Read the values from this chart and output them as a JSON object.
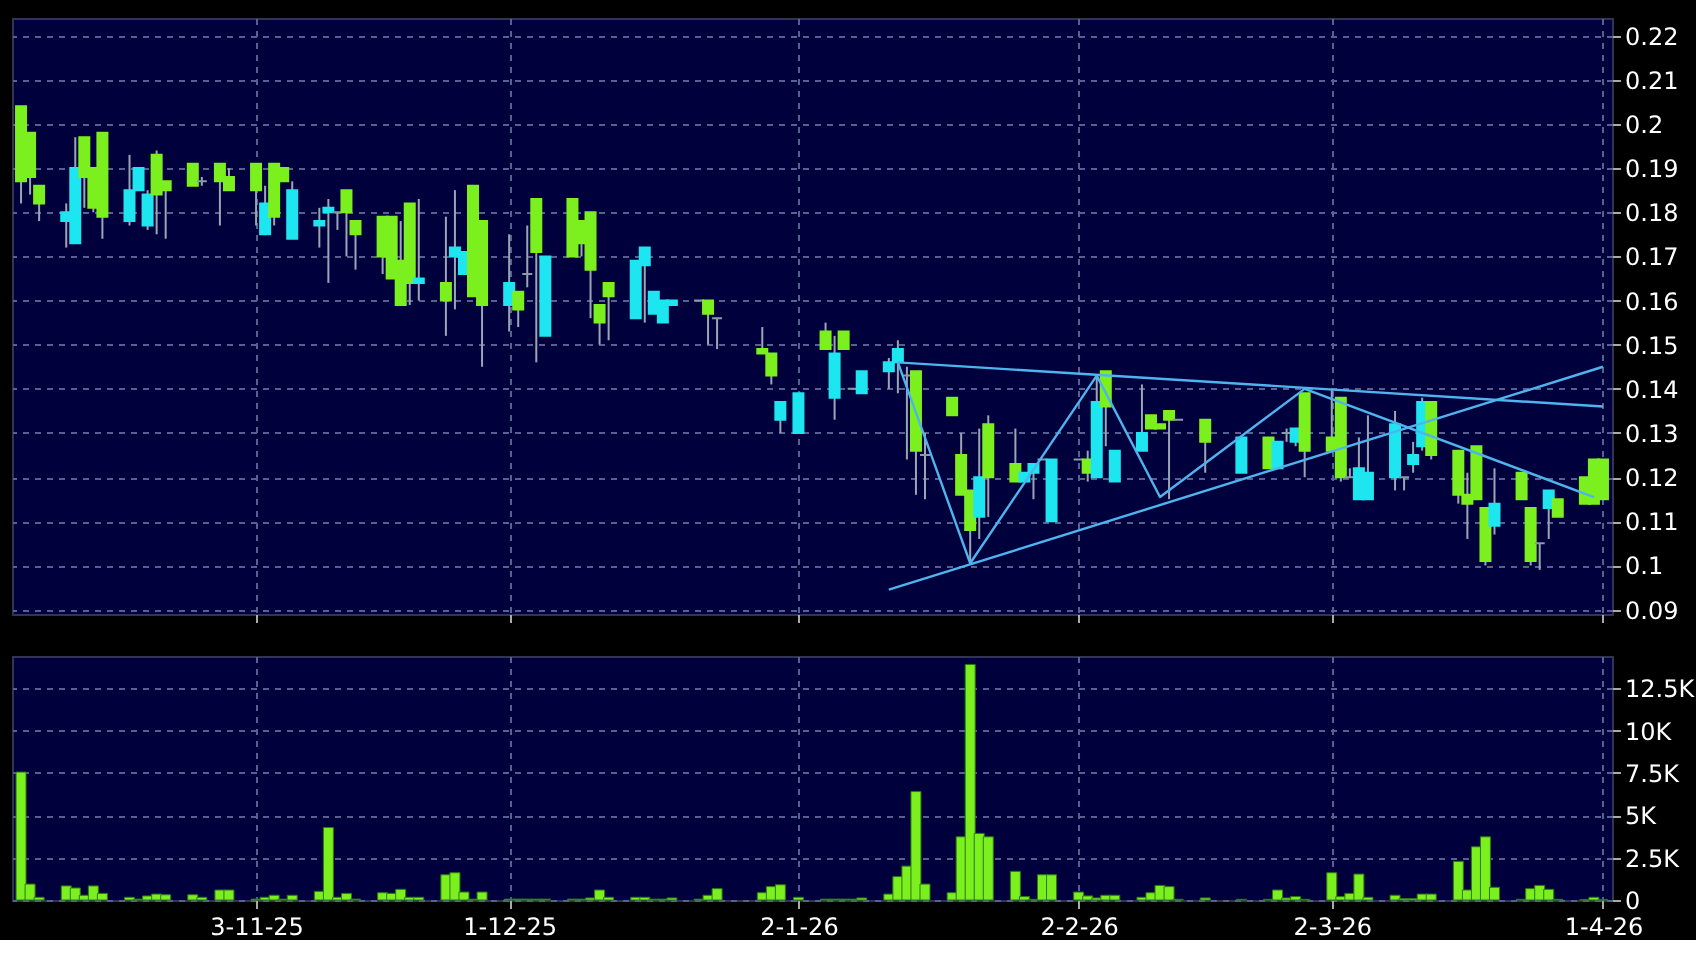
{
  "chart_data": [
    {
      "type": "candlestick",
      "x": [
        "2025-10-08",
        "2025-10-09",
        "2025-10-10",
        "2025-10-13",
        "2025-10-14",
        "2025-10-15",
        "2025-10-16",
        "2025-10-17",
        "2025-10-20",
        "2025-10-21",
        "2025-10-22",
        "2025-10-23",
        "2025-10-24",
        "2025-10-27",
        "2025-10-28",
        "2025-10-30",
        "2025-10-31",
        "2025-11-03",
        "2025-11-04",
        "2025-11-05",
        "2025-11-06",
        "2025-11-07",
        "2025-11-10",
        "2025-11-11",
        "2025-11-12",
        "2025-11-13",
        "2025-11-14",
        "2025-11-17",
        "2025-11-18",
        "2025-11-19",
        "2025-11-20",
        "2025-11-21",
        "2025-11-24",
        "2025-11-25",
        "2025-11-26",
        "2025-11-27",
        "2025-11-28",
        "2025-12-01",
        "2025-12-02",
        "2025-12-03",
        "2025-12-04",
        "2025-12-05",
        "2025-12-08",
        "2025-12-09",
        "2025-12-10",
        "2025-12-11",
        "2025-12-12",
        "2025-12-15",
        "2025-12-16",
        "2025-12-17",
        "2025-12-18",
        "2025-12-19",
        "2025-12-22",
        "2025-12-23",
        "2025-12-24",
        "2025-12-29",
        "2025-12-30",
        "2025-12-31",
        "2026-01-02",
        "2026-01-05",
        "2026-01-06",
        "2026-01-07",
        "2026-01-08",
        "2026-01-09",
        "2026-01-12",
        "2026-01-13",
        "2026-01-14",
        "2026-01-15",
        "2026-01-16",
        "2026-01-19",
        "2026-01-20",
        "2026-01-21",
        "2026-01-22",
        "2026-01-23",
        "2026-01-26",
        "2026-01-27",
        "2026-01-28",
        "2026-01-29",
        "2026-01-30",
        "2026-02-02",
        "2026-02-03",
        "2026-02-04",
        "2026-02-05",
        "2026-02-06",
        "2026-02-09",
        "2026-02-10",
        "2026-02-11",
        "2026-02-12",
        "2026-02-13",
        "2026-02-16",
        "2026-02-20",
        "2026-02-23",
        "2026-02-24",
        "2026-02-25",
        "2026-02-26",
        "2026-02-27",
        "2026-03-02",
        "2026-03-03",
        "2026-03-04",
        "2026-03-05",
        "2026-03-06",
        "2026-03-09",
        "2026-03-10",
        "2026-03-11",
        "2026-03-12",
        "2026-03-13",
        "2026-03-16",
        "2026-03-17",
        "2026-03-18",
        "2026-03-19",
        "2026-03-20",
        "2026-03-23",
        "2026-03-24",
        "2026-03-25",
        "2026-03-26",
        "2026-03-27",
        "2026-03-30",
        "2026-03-31",
        "2026-04-01"
      ],
      "ohlc": [
        [
          0.187,
          0.204,
          0.182,
          0.204
        ],
        [
          0.188,
          0.198,
          0.184,
          0.198
        ],
        [
          0.182,
          0.186,
          0.178,
          0.186
        ],
        [
          0.18,
          0.182,
          0.172,
          0.178
        ],
        [
          0.19,
          0.197,
          0.173,
          0.173
        ],
        [
          0.188,
          0.197,
          0.181,
          0.197
        ],
        [
          0.181,
          0.19,
          0.18,
          0.19
        ],
        [
          0.179,
          0.198,
          0.174,
          0.198
        ],
        [
          0.185,
          0.193,
          0.177,
          0.178
        ],
        [
          0.19,
          0.19,
          0.185,
          0.185
        ],
        [
          0.184,
          0.185,
          0.176,
          0.177
        ],
        [
          0.184,
          0.194,
          0.175,
          0.193
        ],
        [
          0.185,
          0.187,
          0.174,
          0.187
        ],
        [
          0.186,
          0.191,
          0.186,
          0.191
        ],
        [
          0.187,
          0.188,
          0.186,
          0.187
        ],
        [
          0.187,
          0.191,
          0.177,
          0.191
        ],
        [
          0.185,
          0.19,
          0.185,
          0.188
        ],
        [
          0.185,
          0.191,
          0.177,
          0.191
        ],
        [
          0.182,
          0.186,
          0.175,
          0.175
        ],
        [
          0.179,
          0.191,
          0.177,
          0.191
        ],
        [
          0.187,
          0.19,
          0.187,
          0.19
        ],
        [
          0.185,
          0.187,
          0.174,
          0.174
        ],
        [
          0.178,
          0.181,
          0.172,
          0.177
        ],
        [
          0.181,
          0.183,
          0.164,
          0.18
        ],
        [
          0.18,
          0.18,
          0.176,
          0.18
        ],
        [
          0.18,
          0.185,
          0.17,
          0.185
        ],
        [
          0.175,
          0.178,
          0.167,
          0.178
        ],
        [
          0.17,
          0.179,
          0.166,
          0.179
        ],
        [
          0.165,
          0.179,
          0.165,
          0.179
        ],
        [
          0.159,
          0.178,
          0.159,
          0.169
        ],
        [
          0.164,
          0.182,
          0.159,
          0.182
        ],
        [
          0.165,
          0.183,
          0.16,
          0.164
        ],
        [
          0.16,
          0.179,
          0.152,
          0.164
        ],
        [
          0.172,
          0.185,
          0.158,
          0.17
        ],
        [
          0.171,
          0.171,
          0.166,
          0.166
        ],
        [
          0.161,
          0.186,
          0.161,
          0.186
        ],
        [
          0.159,
          0.178,
          0.145,
          0.178
        ],
        [
          0.164,
          0.175,
          0.153,
          0.159
        ],
        [
          0.158,
          0.162,
          0.154,
          0.162
        ],
        [
          0.166,
          0.177,
          0.163,
          0.166
        ],
        [
          0.171,
          0.183,
          0.146,
          0.183
        ],
        [
          0.17,
          0.17,
          0.152,
          0.152
        ],
        [
          0.17,
          0.183,
          0.17,
          0.183
        ],
        [
          0.173,
          0.178,
          0.17,
          0.178
        ],
        [
          0.167,
          0.18,
          0.156,
          0.18
        ],
        [
          0.155,
          0.159,
          0.15,
          0.159
        ],
        [
          0.161,
          0.164,
          0.151,
          0.164
        ],
        [
          0.169,
          0.169,
          0.156,
          0.156
        ],
        [
          0.172,
          0.172,
          0.155,
          0.168
        ],
        [
          0.162,
          0.162,
          0.157,
          0.157
        ],
        [
          0.16,
          0.16,
          0.155,
          0.155
        ],
        [
          0.16,
          0.16,
          0.159,
          0.159
        ],
        [
          0.16,
          0.16,
          0.16,
          0.16
        ],
        [
          0.157,
          0.16,
          0.15,
          0.16
        ],
        [
          0.156,
          0.156,
          0.149,
          0.156
        ],
        [
          0.148,
          0.154,
          0.148,
          0.149
        ],
        [
          0.143,
          0.148,
          0.141,
          0.148
        ],
        [
          0.137,
          0.137,
          0.13,
          0.133
        ],
        [
          0.139,
          0.139,
          0.13,
          0.13
        ],
        [
          0.149,
          0.155,
          0.149,
          0.153
        ],
        [
          0.148,
          0.152,
          0.133,
          0.138
        ],
        [
          0.149,
          0.153,
          0.149,
          0.153
        ],
        [
          0.14,
          0.14,
          0.14,
          0.14
        ],
        [
          0.144,
          0.144,
          0.139,
          0.139
        ],
        [
          0.146,
          0.147,
          0.14,
          0.144
        ],
        [
          0.149,
          0.151,
          0.139,
          0.146
        ],
        [
          0.143,
          0.145,
          0.124,
          0.143
        ],
        [
          0.126,
          0.144,
          0.116,
          0.144
        ],
        [
          0.125,
          0.13,
          0.115,
          0.125
        ],
        [
          0.134,
          0.138,
          0.134,
          0.138
        ],
        [
          0.116,
          0.13,
          0.116,
          0.125
        ],
        [
          0.108,
          0.117,
          0.101,
          0.117
        ],
        [
          0.12,
          0.131,
          0.106,
          0.111
        ],
        [
          0.12,
          0.134,
          0.111,
          0.132
        ],
        [
          0.119,
          0.131,
          0.119,
          0.123
        ],
        [
          0.121,
          0.121,
          0.119,
          0.119
        ],
        [
          0.123,
          0.123,
          0.115,
          0.121
        ],
        [
          0.124,
          0.124,
          0.124,
          0.124
        ],
        [
          0.124,
          0.124,
          0.11,
          0.11
        ],
        [
          0.124,
          0.124,
          0.124,
          0.124
        ],
        [
          0.121,
          0.126,
          0.119,
          0.124
        ],
        [
          0.137,
          0.143,
          0.12,
          0.12
        ],
        [
          0.136,
          0.144,
          0.127,
          0.144
        ],
        [
          0.126,
          0.126,
          0.119,
          0.119
        ],
        [
          0.13,
          0.141,
          0.126,
          0.126
        ],
        [
          0.131,
          0.134,
          0.131,
          0.134
        ],
        [
          0.131,
          0.132,
          0.131,
          0.132
        ],
        [
          0.133,
          0.135,
          0.115,
          0.135
        ],
        [
          0.133,
          0.133,
          0.133,
          0.133
        ],
        [
          0.128,
          0.133,
          0.121,
          0.133
        ],
        [
          0.129,
          0.129,
          0.121,
          0.121
        ],
        [
          0.122,
          0.129,
          0.122,
          0.129
        ],
        [
          0.128,
          0.128,
          0.122,
          0.122
        ],
        [
          0.13,
          0.131,
          0.128,
          0.13
        ],
        [
          0.131,
          0.131,
          0.127,
          0.128
        ],
        [
          0.126,
          0.139,
          0.12,
          0.139
        ],
        [
          0.126,
          0.14,
          0.126,
          0.129
        ],
        [
          0.12,
          0.138,
          0.119,
          0.138
        ],
        [
          0.12,
          0.122,
          0.12,
          0.12
        ],
        [
          0.122,
          0.129,
          0.115,
          0.115
        ],
        [
          0.121,
          0.134,
          0.115,
          0.115
        ],
        [
          0.132,
          0.135,
          0.117,
          0.12
        ],
        [
          0.12,
          0.12,
          0.117,
          0.12
        ],
        [
          0.125,
          0.128,
          0.121,
          0.123
        ],
        [
          0.137,
          0.138,
          0.126,
          0.127
        ],
        [
          0.125,
          0.137,
          0.124,
          0.137
        ],
        [
          0.116,
          0.126,
          0.114,
          0.126
        ],
        [
          0.114,
          0.121,
          0.106,
          0.116
        ],
        [
          0.115,
          0.127,
          0.115,
          0.127
        ],
        [
          0.101,
          0.113,
          0.1,
          0.113
        ],
        [
          0.114,
          0.122,
          0.107,
          0.109
        ],
        [
          0.115,
          0.121,
          0.115,
          0.121
        ],
        [
          0.101,
          0.113,
          0.1,
          0.113
        ],
        [
          0.105,
          0.105,
          0.099,
          0.105
        ],
        [
          0.117,
          0.117,
          0.106,
          0.113
        ],
        [
          0.111,
          0.115,
          0.111,
          0.115
        ],
        [
          0.114,
          0.12,
          0.114,
          0.12
        ],
        [
          0.114,
          0.124,
          0.114,
          0.124
        ],
        [
          0.115,
          0.124,
          0.115,
          0.124
        ]
      ],
      "colors": [
        "#7cf01e",
        "#7cf01e",
        "#7cf01e",
        "#1ee6f0",
        "#1ee6f0",
        "#7cf01e",
        "#7cf01e",
        "#7cf01e",
        "#1ee6f0",
        "#1ee6f0",
        "#1ee6f0",
        "#7cf01e",
        "#7cf01e",
        "#7cf01e",
        "#8c9aa8",
        "#7cf01e",
        "#7cf01e",
        "#7cf01e",
        "#1ee6f0",
        "#7cf01e",
        "#7cf01e",
        "#1ee6f0",
        "#1ee6f0",
        "#1ee6f0",
        "#8c9aa8",
        "#7cf01e",
        "#7cf01e",
        "#7cf01e",
        "#7cf01e",
        "#7cf01e",
        "#7cf01e",
        "#1ee6f0",
        "#7cf01e",
        "#1ee6f0",
        "#1ee6f0",
        "#7cf01e",
        "#7cf01e",
        "#1ee6f0",
        "#7cf01e",
        "#8c9aa8",
        "#7cf01e",
        "#1ee6f0",
        "#7cf01e",
        "#7cf01e",
        "#7cf01e",
        "#7cf01e",
        "#7cf01e",
        "#1ee6f0",
        "#1ee6f0",
        "#1ee6f0",
        "#1ee6f0",
        "#1ee6f0",
        "#8c9aa8",
        "#7cf01e",
        "#8c9aa8",
        "#7cf01e",
        "#7cf01e",
        "#1ee6f0",
        "#1ee6f0",
        "#7cf01e",
        "#1ee6f0",
        "#7cf01e",
        "#8c9aa8",
        "#1ee6f0",
        "#1ee6f0",
        "#1ee6f0",
        "#8c9aa8",
        "#7cf01e",
        "#8c9aa8",
        "#7cf01e",
        "#7cf01e",
        "#7cf01e",
        "#1ee6f0",
        "#7cf01e",
        "#7cf01e",
        "#1ee6f0",
        "#1ee6f0",
        "#8c9aa8",
        "#1ee6f0",
        "#8c9aa8",
        "#7cf01e",
        "#1ee6f0",
        "#7cf01e",
        "#1ee6f0",
        "#1ee6f0",
        "#7cf01e",
        "#7cf01e",
        "#7cf01e",
        "#8c9aa8",
        "#7cf01e",
        "#1ee6f0",
        "#7cf01e",
        "#1ee6f0",
        "#8c9aa8",
        "#1ee6f0",
        "#7cf01e",
        "#7cf01e",
        "#7cf01e",
        "#8c9aa8",
        "#1ee6f0",
        "#1ee6f0",
        "#1ee6f0",
        "#8c9aa8",
        "#1ee6f0",
        "#1ee6f0",
        "#7cf01e",
        "#7cf01e",
        "#7cf01e",
        "#7cf01e",
        "#7cf01e",
        "#1ee6f0",
        "#7cf01e",
        "#7cf01e",
        "#8c9aa8",
        "#1ee6f0",
        "#7cf01e",
        "#7cf01e",
        "#7cf01e",
        "#7cf01e"
      ],
      "series": [
        {
          "type": "line",
          "color": "#4fb4ee",
          "x": [
            "2026-01-13",
            "2026-01-21",
            "2026-02-04",
            "2026-02-11",
            "2026-02-27",
            "2026-03-31"
          ],
          "values": [
            0.146,
            0.1005,
            0.143,
            0.1155,
            0.14,
            0.1155
          ]
        },
        {
          "type": "line",
          "color": "#4fb4ee",
          "x": [
            "2026-01-13",
            "2026-04-01"
          ],
          "values": [
            0.146,
            0.136
          ]
        },
        {
          "type": "line",
          "color": "#4fb4ee",
          "x": [
            "2026-01-12",
            "2026-04-01"
          ],
          "values": [
            0.0945,
            0.145
          ]
        }
      ],
      "xlim": [
        "2025-10-07",
        "2026-04-02"
      ],
      "xticks": [
        {
          "value": "2025-11-03",
          "label": null
        },
        {
          "value": "2025-12-01",
          "label": null
        },
        {
          "value": "2026-01-02",
          "label": null
        },
        {
          "value": "2026-02-02",
          "label": null
        },
        {
          "value": "2026-03-02",
          "label": null
        },
        {
          "value": "2026-04-01",
          "label": null
        }
      ],
      "ylim": [
        0.089,
        0.224
      ],
      "yticks": [
        0.09,
        0.1,
        0.11,
        0.12,
        0.13,
        0.14,
        0.15,
        0.16,
        0.17,
        0.18,
        0.19,
        0.2,
        0.21,
        0.22
      ],
      "grid": true,
      "tick_labels": "y"
    },
    {
      "type": "bar",
      "x": [
        "2025-10-08",
        "2025-10-09",
        "2025-10-10",
        "2025-10-13",
        "2025-10-14",
        "2025-10-15",
        "2025-10-16",
        "2025-10-17",
        "2025-10-20",
        "2025-10-21",
        "2025-10-22",
        "2025-10-23",
        "2025-10-24",
        "2025-10-27",
        "2025-10-28",
        "2025-10-30",
        "2025-10-31",
        "2025-11-03",
        "2025-11-04",
        "2025-11-05",
        "2025-11-06",
        "2025-11-07",
        "2025-11-10",
        "2025-11-11",
        "2025-11-12",
        "2025-11-13",
        "2025-11-14",
        "2025-11-17",
        "2025-11-18",
        "2025-11-19",
        "2025-11-20",
        "2025-11-21",
        "2025-11-24",
        "2025-11-25",
        "2025-11-26",
        "2025-11-27",
        "2025-11-28",
        "2025-12-01",
        "2025-12-02",
        "2025-12-03",
        "2025-12-04",
        "2025-12-05",
        "2025-12-08",
        "2025-12-09",
        "2025-12-10",
        "2025-12-11",
        "2025-12-12",
        "2025-12-15",
        "2025-12-16",
        "2025-12-17",
        "2025-12-18",
        "2025-12-19",
        "2025-12-22",
        "2025-12-23",
        "2025-12-24",
        "2025-12-29",
        "2025-12-30",
        "2025-12-31",
        "2026-01-02",
        "2026-01-05",
        "2026-01-06",
        "2026-01-07",
        "2026-01-08",
        "2026-01-09",
        "2026-01-12",
        "2026-01-13",
        "2026-01-14",
        "2026-01-15",
        "2026-01-16",
        "2026-01-19",
        "2026-01-20",
        "2026-01-21",
        "2026-01-22",
        "2026-01-23",
        "2026-01-26",
        "2026-01-27",
        "2026-01-28",
        "2026-01-29",
        "2026-01-30",
        "2026-02-02",
        "2026-02-03",
        "2026-02-04",
        "2026-02-05",
        "2026-02-06",
        "2026-02-09",
        "2026-02-10",
        "2026-02-11",
        "2026-02-12",
        "2026-02-13",
        "2026-02-16",
        "2026-02-20",
        "2026-02-23",
        "2026-02-24",
        "2026-02-25",
        "2026-02-26",
        "2026-02-27",
        "2026-03-02",
        "2026-03-03",
        "2026-03-04",
        "2026-03-05",
        "2026-03-06",
        "2026-03-09",
        "2026-03-10",
        "2026-03-11",
        "2026-03-12",
        "2026-03-13",
        "2026-03-16",
        "2026-03-17",
        "2026-03-18",
        "2026-03-19",
        "2026-03-20",
        "2026-03-23",
        "2026-03-24",
        "2026-03-25",
        "2026-03-26",
        "2026-03-27",
        "2026-03-30",
        "2026-03-31",
        "2026-04-01"
      ],
      "values": [
        7550,
        940,
        160,
        830,
        710,
        280,
        830,
        390,
        160,
        50,
        240,
        350,
        310,
        310,
        160,
        590,
        590,
        50,
        160,
        280,
        50,
        280,
        510,
        4280,
        160,
        390,
        50,
        430,
        390,
        630,
        160,
        160,
        1490,
        1610,
        470,
        50,
        470,
        50,
        50,
        50,
        50,
        50,
        50,
        50,
        120,
        590,
        160,
        160,
        160,
        50,
        50,
        120,
        50,
        280,
        670,
        430,
        790,
        900,
        160,
        50,
        50,
        50,
        50,
        120,
        350,
        1380,
        2000,
        6400,
        940,
        430,
        3730,
        13900,
        3930,
        3730,
        1690,
        200,
        40,
        1490,
        1490,
        470,
        240,
        120,
        280,
        280,
        160,
        430,
        860,
        790,
        40,
        120,
        40,
        40,
        590,
        120,
        200,
        40,
        1610,
        200,
        390,
        1530,
        160,
        280,
        80,
        80,
        350,
        350,
        2280,
        590,
        3140,
        3730,
        750,
        40,
        670,
        860,
        630,
        40,
        20,
        160,
        20
      ],
      "color": "#7cf01e",
      "xlim": [
        "2025-10-07",
        "2026-04-02"
      ],
      "xticks": [
        {
          "value": "2025-11-03",
          "label": "3-11-25"
        },
        {
          "value": "2025-12-01",
          "label": "1-12-25"
        },
        {
          "value": "2026-01-02",
          "label": "2-1-26"
        },
        {
          "value": "2026-02-02",
          "label": "2-2-26"
        },
        {
          "value": "2026-03-02",
          "label": "2-3-26"
        },
        {
          "value": "2026-04-01",
          "label": "1-4-26"
        }
      ],
      "ylim": [
        0,
        14400
      ],
      "yticks": [
        0,
        {
          "value": 2500,
          "label": "2.5K"
        },
        {
          "value": 5000,
          "label": "5K"
        },
        {
          "value": 7500,
          "label": "7.5K"
        },
        {
          "value": 10000,
          "label": "10K"
        },
        {
          "value": 12500,
          "label": "12.5K"
        }
      ],
      "grid": true
    }
  ]
}
